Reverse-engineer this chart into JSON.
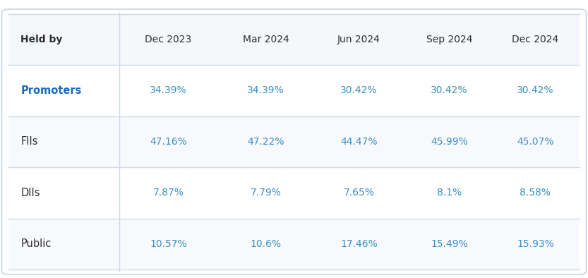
{
  "columns": [
    "Held by",
    "Dec 2023",
    "Mar 2024",
    "Jun 2024",
    "Sep 2024",
    "Dec 2024"
  ],
  "rows": [
    {
      "label": "Promoters",
      "label_bold": true,
      "label_color": "#1a6bbf",
      "values": [
        "34.39%",
        "34.39%",
        "30.42%",
        "30.42%",
        "30.42%"
      ],
      "value_color": "#3a8fc4"
    },
    {
      "label": "FIIs",
      "label_bold": false,
      "label_color": "#2d2d2d",
      "values": [
        "47.16%",
        "47.22%",
        "44.47%",
        "45.99%",
        "45.07%"
      ],
      "value_color": "#3a8fc4"
    },
    {
      "label": "DIIs",
      "label_bold": false,
      "label_color": "#2d2d2d",
      "values": [
        "7.87%",
        "7.79%",
        "7.65%",
        "8.1%",
        "8.58%"
      ],
      "value_color": "#3a8fc4"
    },
    {
      "label": "Public",
      "label_bold": false,
      "label_color": "#2d2d2d",
      "values": [
        "10.57%",
        "10.6%",
        "17.46%",
        "15.49%",
        "15.93%"
      ],
      "value_color": "#3a8fc4"
    }
  ],
  "header_color": "#2d2d2d",
  "background_color": "#ffffff",
  "border_color": "#d0d8e8",
  "outer_border_color": "#c8d4e8",
  "header_bg": "#f5f7fb",
  "header_fontsize": 10,
  "cell_fontsize": 10,
  "label_fontsize": 10.5
}
